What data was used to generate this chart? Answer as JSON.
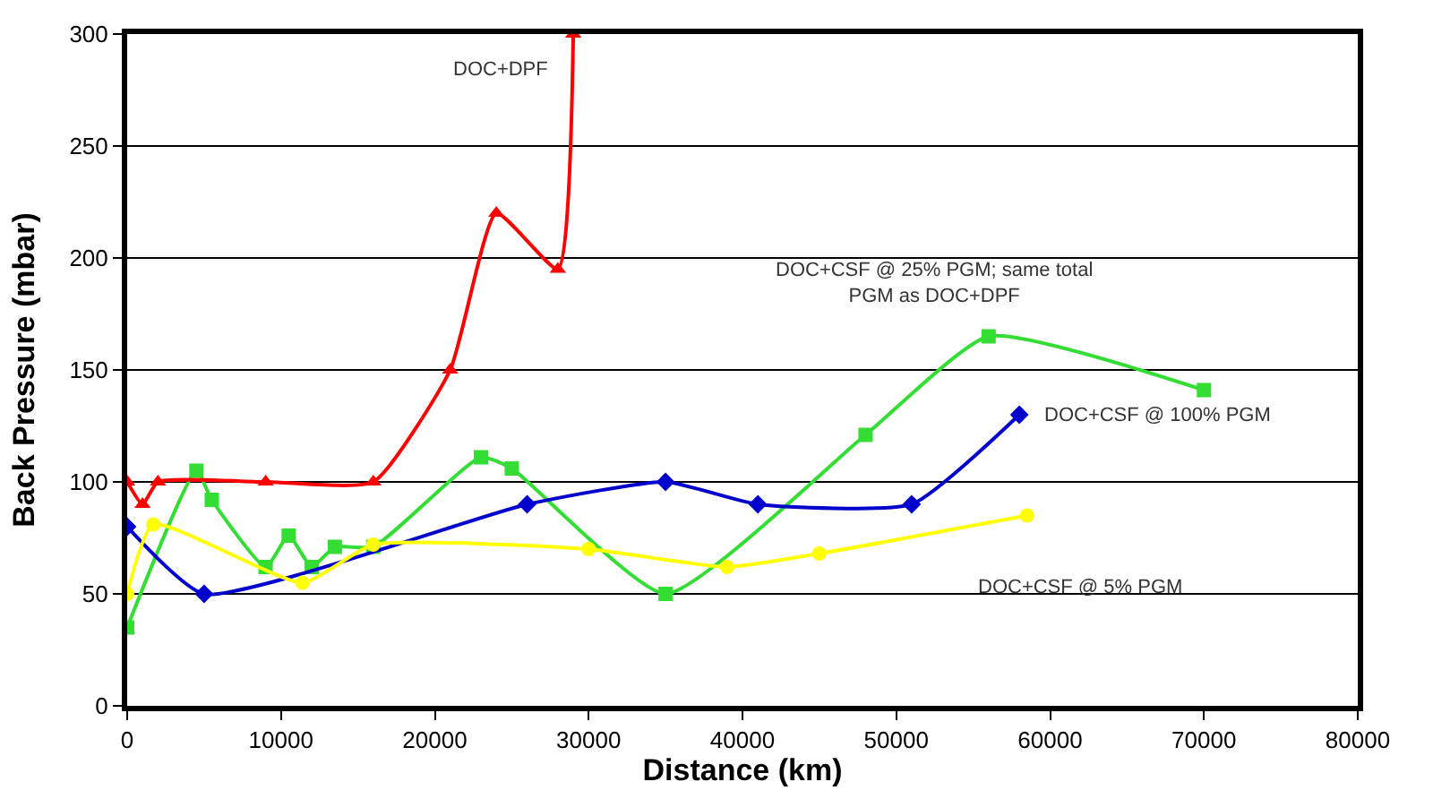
{
  "chart_data": {
    "type": "line",
    "xlabel": "Distance (km)",
    "ylabel": "Back Pressure (mbar)",
    "xlim": [
      0,
      80000
    ],
    "xticks": [
      0,
      10000,
      20000,
      30000,
      40000,
      50000,
      60000,
      70000,
      80000
    ],
    "ylim": [
      0,
      300
    ],
    "yticks": [
      0,
      50,
      100,
      150,
      200,
      250,
      300
    ],
    "grid": "y",
    "legend": false,
    "series": [
      {
        "name": "DOC+CSF @ 25% PGM; same total\nPGM as DOC+DPF",
        "color": "#33dd33",
        "marker": "square",
        "x": [
          0,
          4500,
          5500,
          9000,
          10500,
          12000,
          13500,
          16000,
          23000,
          25000,
          35000,
          48000,
          56000,
          70000
        ],
        "values": [
          35,
          105,
          92,
          62,
          76,
          62,
          71,
          71,
          111,
          106,
          50,
          121,
          165,
          141
        ]
      },
      {
        "name": "DOC+CSF @ 100% PGM",
        "color": "#0000cc",
        "marker": "diamond",
        "x": [
          0,
          5000,
          26000,
          35000,
          41000,
          51000,
          58000
        ],
        "values": [
          80,
          50,
          90,
          100,
          90,
          90,
          130
        ]
      },
      {
        "name": "DOC+CSF @ 5% PGM",
        "color": "#ffff00",
        "marker": "circle",
        "x": [
          0,
          1700,
          11400,
          16000,
          30000,
          39000,
          45000,
          58500
        ],
        "values": [
          50,
          81,
          55,
          72,
          70,
          62,
          68,
          85
        ]
      },
      {
        "name": "DOC+DPF",
        "color": "#ff0000",
        "marker": "triangle",
        "x": [
          0,
          1000,
          2000,
          9000,
          16000,
          21000,
          24000,
          28000,
          29000
        ],
        "values": [
          100,
          90,
          100,
          100,
          100,
          150,
          220,
          195,
          300
        ]
      }
    ]
  }
}
